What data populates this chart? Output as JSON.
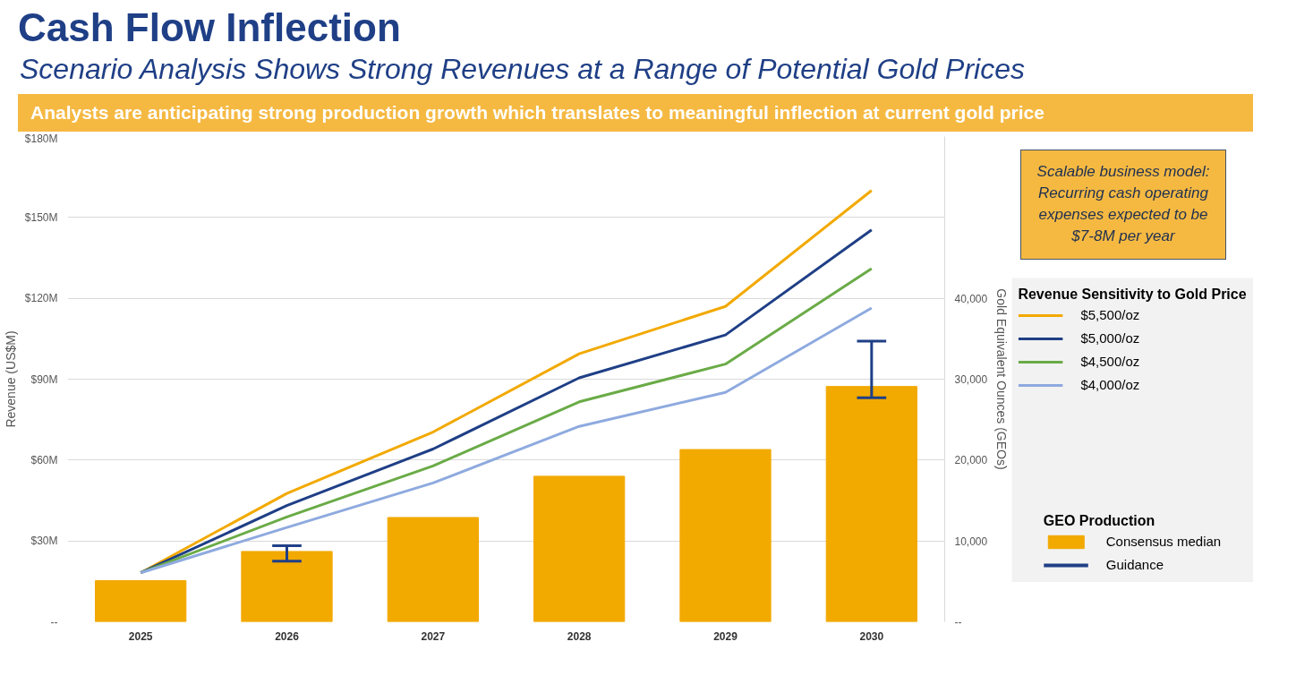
{
  "chart_data": {
    "type": "line",
    "title": "Cash Flow Inflection",
    "subtitle": "Scenario Analysis Shows Strong Revenues at a Range of Potential Gold Prices",
    "ylabel": "Revenue (US$M)",
    "y2label": "Gold Equivalent Ounces (GEOs)",
    "legend_title": "Revenue Sensitivity to Gold Price",
    "annotations": [
      "Analysts are anticipating strong production growth which translates to meaningful inflection at current gold price",
      "Scalable business model: Recurring cash operating expenses expected to be $7-8M per year",
      "GEO Production",
      "Guidance"
    ],
    "categories": [
      "2025",
      "2026",
      "2027",
      "2028",
      "2029",
      "2030"
    ],
    "series": [
      {
        "name": "Consensus median",
        "type": "bar",
        "axis": "y2",
        "color": "#f2a900",
        "values": [
          5100,
          8700,
          12900,
          18000,
          21300,
          29100
        ],
        "errors": [
          null,
          [
            7500,
            9400
          ],
          null,
          null,
          null,
          [
            27700,
            34700
          ]
        ]
      },
      {
        "name": "$5,500/oz",
        "color": "#f2a900",
        "values": [
          18.2,
          47.6,
          70.4,
          99.4,
          117,
          160
        ]
      },
      {
        "name": "$5,000/oz",
        "color": "#1f3f86",
        "values": [
          18.2,
          43.1,
          64.1,
          90.5,
          106.4,
          145.4
        ]
      },
      {
        "name": "$4,500/oz",
        "color": "#6aab47",
        "values": [
          18.2,
          38.9,
          57.8,
          81.6,
          95.6,
          131
        ]
      },
      {
        "name": "$4,000/oz",
        "color": "#8eaadf",
        "values": [
          18.2,
          35.0,
          51.5,
          72.5,
          85.1,
          116.4
        ]
      }
    ],
    "ylim": [
      0,
      180
    ],
    "yticks": [
      {
        "value": 0,
        "label": "--"
      },
      {
        "value": 30,
        "label": "$30M"
      },
      {
        "value": 60,
        "label": "$60M"
      },
      {
        "value": 90,
        "label": "$90M"
      },
      {
        "value": 120,
        "label": "$120M"
      },
      {
        "value": 150,
        "label": "$150M"
      },
      {
        "value": 180,
        "label": "$180M"
      }
    ],
    "y2lim": [
      0,
      60000
    ],
    "y2ticks": [
      {
        "value": 0,
        "label": "--"
      },
      {
        "value": 10000,
        "label": "10,000"
      },
      {
        "value": 20000,
        "label": "20,000"
      },
      {
        "value": 30000,
        "label": "30,000"
      },
      {
        "value": 40000,
        "label": "40,000"
      }
    ],
    "grid": "y",
    "legend": "right",
    "line_style": "solid",
    "marker": "none"
  }
}
